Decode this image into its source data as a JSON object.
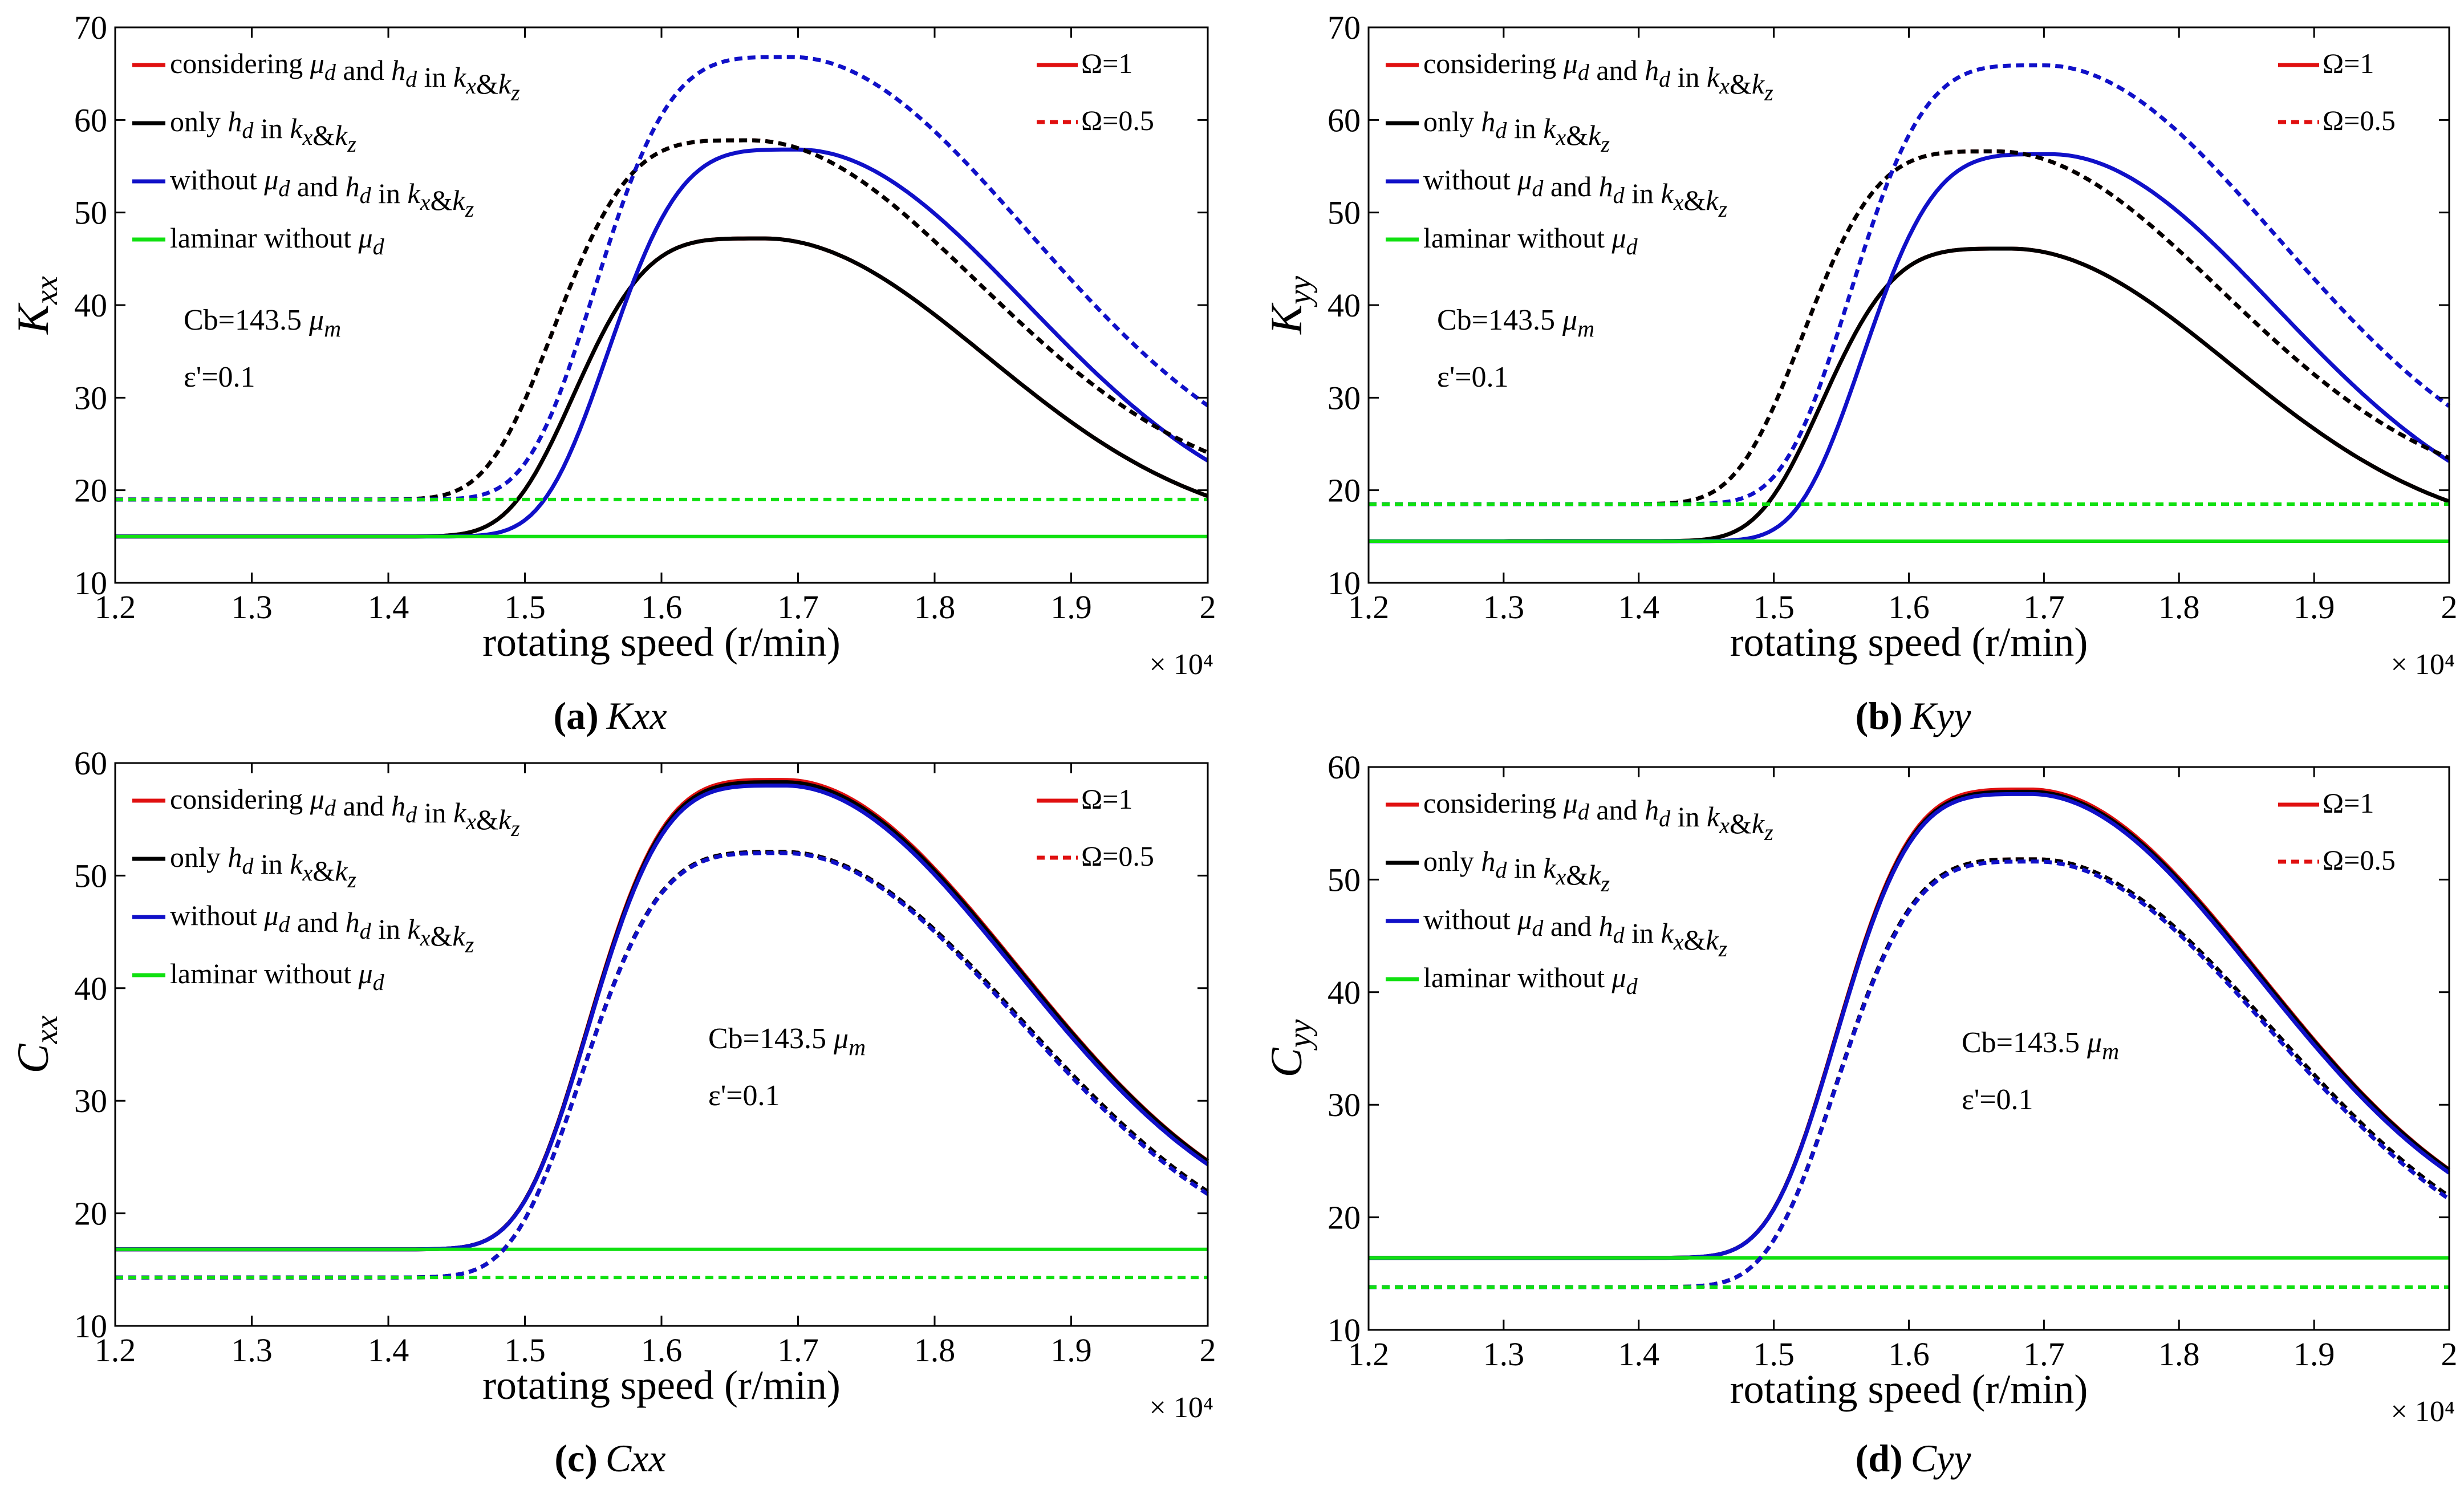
{
  "figure": {
    "x_axis_label": "rotating speed (r/min)",
    "x_exponent": "× 10⁴",
    "series_styles": {
      "considering": {
        "color": "#e01010"
      },
      "only_hd": {
        "color": "#000000"
      },
      "without": {
        "color": "#1010c8"
      },
      "laminar": {
        "color": "#10e010"
      }
    },
    "legend_omega": [
      "Ω=1",
      "Ω=0.5"
    ]
  },
  "chart_data": [
    {
      "id": "a",
      "type": "line",
      "ylabel": "K_xx",
      "xlim": [
        12000,
        20000
      ],
      "ylim": [
        10,
        70
      ],
      "xticks": [
        "1.2",
        "1.3",
        "1.4",
        "1.5",
        "1.6",
        "1.7",
        "1.8",
        "1.9",
        "2"
      ],
      "yticks": [
        "10",
        "20",
        "30",
        "40",
        "50",
        "60",
        "70"
      ],
      "caption_letter": "(a)",
      "caption_sym": "Kxx",
      "legend": [
        "considering μd and hd in kx&kz",
        "only hd in kx&kz",
        "without μd and hd in kx&kz",
        "laminar without μd"
      ],
      "legend_omega": [
        "Ω=1",
        "Ω=0.5"
      ],
      "annotation": [
        "Cb=143.5 μm",
        "ε'=0.1"
      ],
      "series": [
        {
          "name": "considering μd and hd in kx&kz (Ω=1)",
          "key": "considering",
          "dash": false,
          "base": 15,
          "peak": 47.2,
          "xpeak": 16750,
          "wl": 1500,
          "wr": 2300,
          "pl": 4
        },
        {
          "name": "only hd in kx&kz (Ω=1)",
          "key": "only_hd",
          "dash": false,
          "base": 15,
          "peak": 47.2,
          "xpeak": 16750,
          "wl": 1500,
          "wr": 2300,
          "pl": 4
        },
        {
          "name": "without μd and hd in kx&kz (Ω=1)",
          "key": "without",
          "dash": false,
          "base": 15,
          "peak": 56.8,
          "xpeak": 17000,
          "wl": 1500,
          "wr": 2350,
          "pl": 4
        },
        {
          "name": "laminar without μd (Ω=1)",
          "key": "laminar",
          "dash": false,
          "base": 15,
          "flat": true
        },
        {
          "name": "considering μd and hd in kx&kz (Ω=0.5)",
          "key": "considering",
          "dash": true,
          "base": 19,
          "peak": 57.8,
          "xpeak": 16650,
          "wl": 1550,
          "wr": 2350,
          "pl": 4
        },
        {
          "name": "only hd in kx&kz (Ω=0.5)",
          "key": "only_hd",
          "dash": true,
          "base": 19,
          "peak": 57.8,
          "xpeak": 16650,
          "wl": 1550,
          "wr": 2350,
          "pl": 4
        },
        {
          "name": "without μd and hd in kx&kz (Ω=0.5)",
          "key": "without",
          "dash": true,
          "base": 19,
          "peak": 66.8,
          "xpeak": 16950,
          "wl": 1550,
          "wr": 2450,
          "pl": 4
        },
        {
          "name": "laminar without μd (Ω=0.5)",
          "key": "laminar",
          "dash": true,
          "base": 19,
          "flat": true
        }
      ]
    },
    {
      "id": "b",
      "type": "line",
      "ylabel": "K_yy",
      "xlim": [
        12000,
        20000
      ],
      "ylim": [
        10,
        70
      ],
      "xticks": [
        "1.2",
        "1.3",
        "1.4",
        "1.5",
        "1.6",
        "1.7",
        "1.8",
        "1.9",
        "2"
      ],
      "yticks": [
        "10",
        "20",
        "30",
        "40",
        "50",
        "60",
        "70"
      ],
      "caption_letter": "(b)",
      "caption_sym": "Kyy",
      "legend": [
        "considering μd and hd in kx&kz",
        "only hd in kx&kz",
        "without μd and hd in kx&kz",
        "laminar without μd"
      ],
      "legend_omega": [
        "Ω=1",
        "Ω=0.5"
      ],
      "annotation": [
        "Cb=143.5 μm",
        "ε'=0.1"
      ],
      "series": [
        {
          "name": "considering μd and hd in kx&kz (Ω=1)",
          "key": "considering",
          "dash": false,
          "base": 14.5,
          "peak": 46.1,
          "xpeak": 16750,
          "wl": 1500,
          "wr": 2300,
          "pl": 4
        },
        {
          "name": "only hd in kx&kz (Ω=1)",
          "key": "only_hd",
          "dash": false,
          "base": 14.5,
          "peak": 46.1,
          "xpeak": 16750,
          "wl": 1500,
          "wr": 2300,
          "pl": 4
        },
        {
          "name": "without μd and hd in kx&kz (Ω=1)",
          "key": "without",
          "dash": false,
          "base": 14.5,
          "peak": 56.3,
          "xpeak": 17050,
          "wl": 1500,
          "wr": 2350,
          "pl": 4
        },
        {
          "name": "laminar without μd (Ω=1)",
          "key": "laminar",
          "dash": false,
          "base": 14.5,
          "flat": true
        },
        {
          "name": "considering μd and hd in kx&kz (Ω=0.5)",
          "key": "considering",
          "dash": true,
          "base": 18.5,
          "peak": 56.6,
          "xpeak": 16650,
          "wl": 1550,
          "wr": 2350,
          "pl": 4
        },
        {
          "name": "only hd in kx&kz (Ω=0.5)",
          "key": "only_hd",
          "dash": true,
          "base": 18.5,
          "peak": 56.6,
          "xpeak": 16650,
          "wl": 1550,
          "wr": 2350,
          "pl": 4
        },
        {
          "name": "without μd and hd in kx&kz (Ω=0.5)",
          "key": "without",
          "dash": true,
          "base": 18.5,
          "peak": 65.9,
          "xpeak": 17000,
          "wl": 1550,
          "wr": 2450,
          "pl": 4
        },
        {
          "name": "laminar without μd (Ω=0.5)",
          "key": "laminar",
          "dash": true,
          "base": 18.5,
          "flat": true
        }
      ]
    },
    {
      "id": "c",
      "type": "line",
      "ylabel": "C_xx",
      "xlim": [
        12000,
        20000
      ],
      "ylim": [
        10,
        60
      ],
      "xticks": [
        "1.2",
        "1.3",
        "1.4",
        "1.5",
        "1.6",
        "1.7",
        "1.8",
        "1.9",
        "2"
      ],
      "yticks": [
        "10",
        "20",
        "30",
        "40",
        "50",
        "60"
      ],
      "caption_letter": "(c)",
      "caption_sym": "Cxx",
      "legend": [
        "considering μd and hd in kx&kz",
        "only hd in kx&kz",
        "without μd and hd in kx&kz",
        "laminar without μd"
      ],
      "legend_omega": [
        "Ω=1",
        "Ω=0.5"
      ],
      "annotation": [
        "Cb=143.5 μm",
        "ε'=0.1"
      ],
      "series": [
        {
          "name": "considering μd and hd in kx&kz (Ω=1)",
          "key": "considering",
          "dash": false,
          "base": 16.8,
          "peak": 58.5,
          "xpeak": 16900,
          "wl": 1550,
          "wr": 2400,
          "pl": 4
        },
        {
          "name": "only hd in kx&kz (Ω=1)",
          "key": "only_hd",
          "dash": false,
          "base": 16.8,
          "peak": 58.3,
          "xpeak": 16900,
          "wl": 1550,
          "wr": 2400,
          "pl": 4
        },
        {
          "name": "without μd and hd in kx&kz (Ω=1)",
          "key": "without",
          "dash": false,
          "base": 16.8,
          "peak": 58.0,
          "xpeak": 16900,
          "wl": 1550,
          "wr": 2380,
          "pl": 4
        },
        {
          "name": "laminar without μd (Ω=1)",
          "key": "laminar",
          "dash": false,
          "base": 16.8,
          "flat": true
        },
        {
          "name": "considering μd and hd in kx&kz (Ω=0.5)",
          "key": "considering",
          "dash": true,
          "base": 14.3,
          "peak": 52.1,
          "xpeak": 16900,
          "wl": 1600,
          "wr": 2450,
          "pl": 4
        },
        {
          "name": "only hd in kx&kz (Ω=0.5)",
          "key": "only_hd",
          "dash": true,
          "base": 14.3,
          "peak": 52.1,
          "xpeak": 16900,
          "wl": 1600,
          "wr": 2450,
          "pl": 4
        },
        {
          "name": "without μd and hd in kx&kz (Ω=0.5)",
          "key": "without",
          "dash": true,
          "base": 14.3,
          "peak": 52.0,
          "xpeak": 16900,
          "wl": 1600,
          "wr": 2430,
          "pl": 4
        },
        {
          "name": "laminar without μd (Ω=0.5)",
          "key": "laminar",
          "dash": true,
          "base": 14.3,
          "flat": true
        }
      ]
    },
    {
      "id": "d",
      "type": "line",
      "ylabel": "C_yy",
      "xlim": [
        12000,
        20000
      ],
      "ylim": [
        10,
        60
      ],
      "xticks": [
        "1.2",
        "1.3",
        "1.4",
        "1.5",
        "1.6",
        "1.7",
        "1.8",
        "1.9",
        "2"
      ],
      "yticks": [
        "10",
        "20",
        "30",
        "40",
        "50",
        "60"
      ],
      "caption_letter": "(d)",
      "caption_sym": "Cyy",
      "legend": [
        "considering μd and hd in kx&kz",
        "only hd in kx&kz",
        "without μd and hd in kx&kz",
        "laminar without μd"
      ],
      "legend_omega": [
        "Ω=1",
        "Ω=0.5"
      ],
      "annotation": [
        "Cb=143.5 μm",
        "ε'=0.1"
      ],
      "series": [
        {
          "name": "considering μd and hd in kx&kz (Ω=1)",
          "key": "considering",
          "dash": false,
          "base": 16.4,
          "peak": 58.0,
          "xpeak": 16900,
          "wl": 1550,
          "wr": 2400,
          "pl": 4
        },
        {
          "name": "only hd in kx&kz (Ω=1)",
          "key": "only_hd",
          "dash": false,
          "base": 16.4,
          "peak": 57.8,
          "xpeak": 16900,
          "wl": 1550,
          "wr": 2400,
          "pl": 4
        },
        {
          "name": "without μd and hd in kx&kz (Ω=1)",
          "key": "without",
          "dash": false,
          "base": 16.4,
          "peak": 57.6,
          "xpeak": 16900,
          "wl": 1550,
          "wr": 2380,
          "pl": 4
        },
        {
          "name": "laminar without μd (Ω=1)",
          "key": "laminar",
          "dash": false,
          "base": 16.4,
          "flat": true
        },
        {
          "name": "considering μd and hd in kx&kz (Ω=0.5)",
          "key": "considering",
          "dash": true,
          "base": 13.8,
          "peak": 51.8,
          "xpeak": 16950,
          "wl": 1600,
          "wr": 2450,
          "pl": 4
        },
        {
          "name": "only hd in kx&kz (Ω=0.5)",
          "key": "only_hd",
          "dash": true,
          "base": 13.8,
          "peak": 51.8,
          "xpeak": 16950,
          "wl": 1600,
          "wr": 2450,
          "pl": 4
        },
        {
          "name": "without μd and hd in kx&kz (Ω=0.5)",
          "key": "without",
          "dash": true,
          "base": 13.8,
          "peak": 51.6,
          "xpeak": 16950,
          "wl": 1600,
          "wr": 2430,
          "pl": 4
        },
        {
          "name": "laminar without μd (Ω=0.5)",
          "key": "laminar",
          "dash": true,
          "base": 13.8,
          "flat": true
        }
      ]
    }
  ]
}
